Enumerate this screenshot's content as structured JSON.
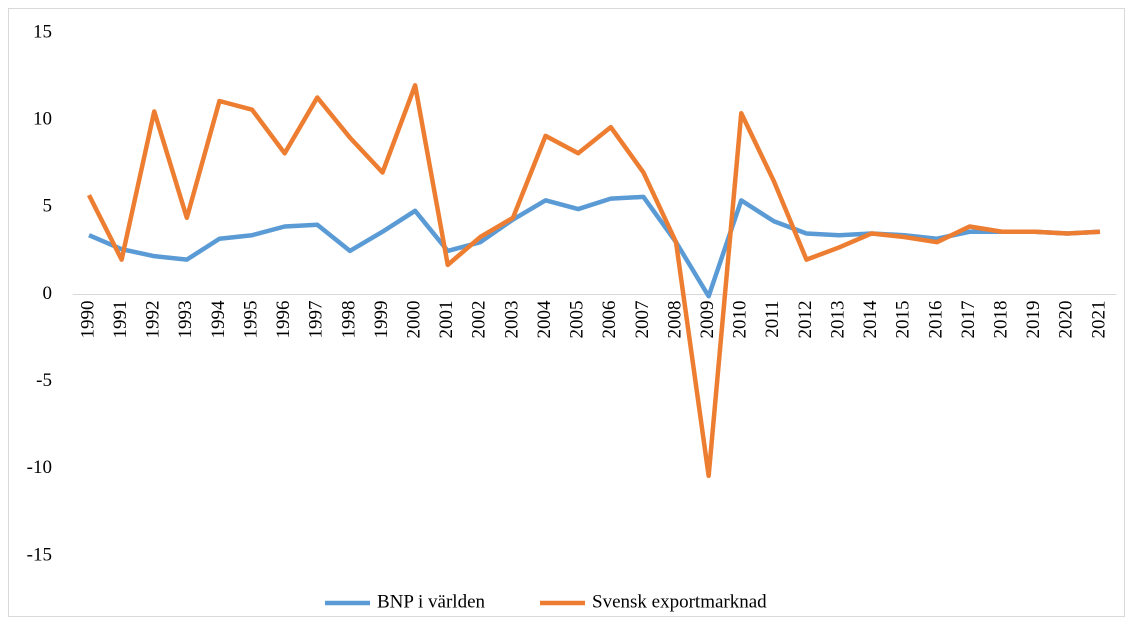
{
  "chart_data": {
    "type": "line",
    "categories": [
      "1990",
      "1991",
      "1992",
      "1993",
      "1994",
      "1995",
      "1996",
      "1997",
      "1998",
      "1999",
      "2000",
      "2001",
      "2002",
      "2003",
      "2004",
      "2005",
      "2006",
      "2007",
      "2008",
      "2009",
      "2010",
      "2011",
      "2012",
      "2013",
      "2014",
      "2015",
      "2016",
      "2017",
      "2018",
      "2019",
      "2020",
      "2021"
    ],
    "series": [
      {
        "name": "BNP i världen",
        "color": "#5b9bd5",
        "values": [
          3.4,
          2.6,
          2.2,
          2.0,
          3.2,
          3.4,
          3.9,
          4.0,
          2.5,
          3.6,
          4.8,
          2.5,
          3.0,
          4.3,
          5.4,
          4.9,
          5.5,
          5.6,
          3.0,
          -0.1,
          5.4,
          4.2,
          3.5,
          3.4,
          3.5,
          3.4,
          3.2,
          3.6,
          3.6,
          3.6,
          3.5,
          3.6
        ]
      },
      {
        "name": "Svensk exportmarknad",
        "color": "#ed7d31",
        "values": [
          5.7,
          2.0,
          10.5,
          4.4,
          11.1,
          10.6,
          8.1,
          11.3,
          9.0,
          7.0,
          12.0,
          1.7,
          3.3,
          4.4,
          9.1,
          8.1,
          9.6,
          7.0,
          3.0,
          -10.4,
          10.4,
          6.5,
          2.0,
          2.7,
          3.5,
          3.3,
          3.0,
          3.9,
          3.6,
          3.6,
          3.5,
          3.6
        ]
      }
    ],
    "ylim": [
      -15,
      15
    ],
    "yticks": [
      -15,
      -10,
      -5,
      0,
      5,
      10,
      15
    ],
    "grid": false,
    "legend": "bottom"
  }
}
